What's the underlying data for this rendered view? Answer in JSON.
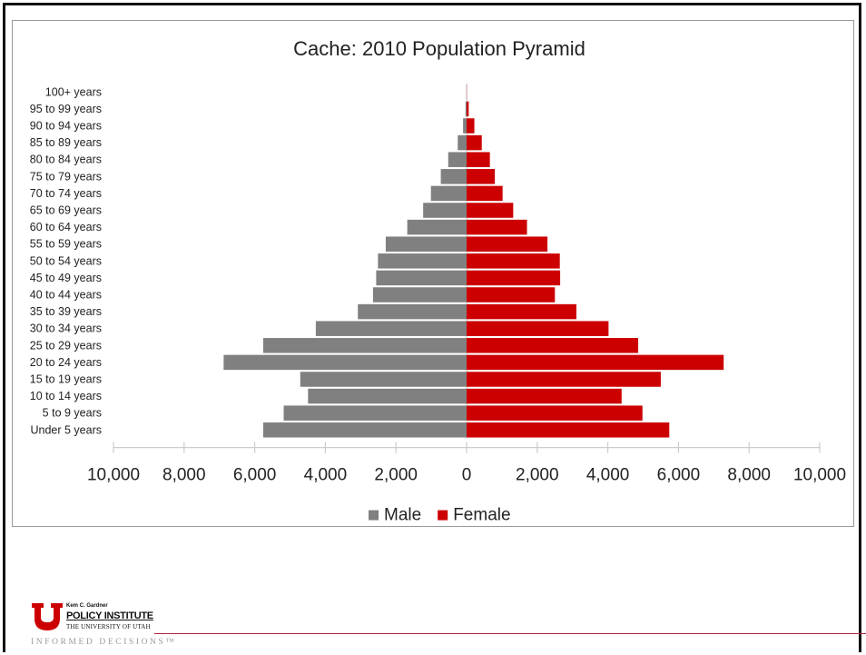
{
  "chart_data": {
    "type": "bar",
    "orientation": "horizontal-population-pyramid",
    "title": "Cache: 2010 Population Pyramid",
    "categories": [
      "100+ years",
      "95 to 99 years",
      "90 to 94 years",
      "85 to 89 years",
      "80 to 84 years",
      "75 to 79 years",
      "70 to 74 years",
      "65 to 69 years",
      "60 to 64 years",
      "55 to 59 years",
      "50 to 54 years",
      "45 to 49 years",
      "40 to 44 years",
      "35 to 39 years",
      "30 to 34 years",
      "25 to 29 years",
      "20 to 24 years",
      "15 to 19 years",
      "10 to 14 years",
      "5 to 9 years",
      "Under 5 years"
    ],
    "series": [
      {
        "name": "Male",
        "color": "#808080",
        "side": "left",
        "values": [
          5,
          30,
          100,
          250,
          520,
          730,
          1010,
          1230,
          1680,
          2290,
          2510,
          2560,
          2650,
          3080,
          4270,
          5760,
          6880,
          4710,
          4490,
          5180,
          5760
        ]
      },
      {
        "name": "Female",
        "color": "#cc0000",
        "side": "right",
        "values": [
          5,
          60,
          220,
          430,
          660,
          800,
          1020,
          1320,
          1710,
          2290,
          2640,
          2650,
          2500,
          3110,
          4020,
          4860,
          7280,
          5500,
          4390,
          4980,
          5740
        ]
      }
    ],
    "xlim": [
      -10000,
      10000
    ],
    "x_ticks": [
      -10000,
      -8000,
      -6000,
      -4000,
      -2000,
      0,
      2000,
      4000,
      6000,
      8000,
      10000
    ],
    "x_tick_labels": [
      "10,000",
      "8,000",
      "6,000",
      "4,000",
      "2,000",
      "0",
      "2,000",
      "4,000",
      "6,000",
      "8,000",
      "10,000"
    ],
    "xlabel": "",
    "ylabel": "",
    "grid": false,
    "legend_position": "bottom-center"
  },
  "footer": {
    "institute_small": "Kem C. Gardner",
    "institute_name": "POLICY INSTITUTE",
    "university": "THE UNIVERSITY OF UTAH",
    "tagline": "INFORMED DECISIONS™",
    "brand_color": "#cc0000"
  }
}
